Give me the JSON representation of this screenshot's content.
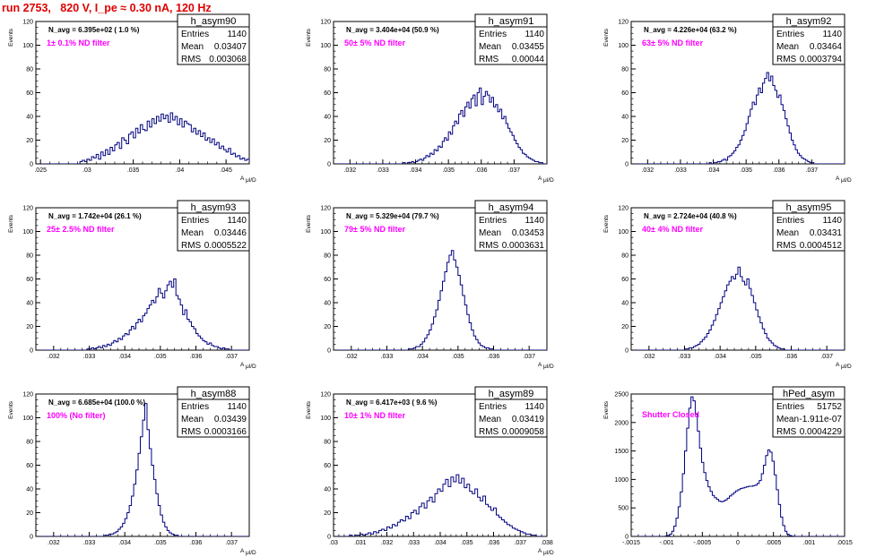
{
  "page_title": "run 2753,   820 V, I_pe ≈ 0.30 nA, 120 Hz",
  "stat_labels": {
    "entries": "Entries",
    "mean": "Mean",
    "rms": "RMS"
  },
  "colors": {
    "title": "#e00000",
    "filter_label": "#ff00ff",
    "histogram_line": "#000080"
  },
  "chart_data": [
    {
      "type": "bar",
      "name": "h_asym90",
      "x_label": "A",
      "x_sub": "μl/D",
      "y_label": "Events",
      "xlim": [
        0.0245,
        0.0475
      ],
      "ylim": [
        0,
        120
      ],
      "x_ticks": [
        0.025,
        0.03,
        0.035,
        0.04,
        0.045
      ],
      "y_ticks": [
        0,
        20,
        40,
        60,
        80,
        100,
        120
      ],
      "n_avg_text": "N_avg = 6.395e+02 ( 1.0 %)",
      "filter_text": "1± 0.1% ND filter",
      "stats": {
        "entries": "1140",
        "mean": "0.03407",
        "rms": "0.003068"
      },
      "bin_start": 0.0245,
      "bin_width": 0.00025,
      "counts": [
        0,
        0,
        0,
        0,
        0,
        0,
        0,
        0,
        0,
        0,
        0,
        0,
        0,
        0,
        0,
        0,
        0,
        0,
        0,
        2,
        3,
        2,
        4,
        3,
        6,
        5,
        8,
        4,
        10,
        7,
        12,
        8,
        14,
        11,
        16,
        18,
        13,
        22,
        20,
        17,
        25,
        27,
        22,
        30,
        26,
        33,
        29,
        28,
        36,
        31,
        38,
        34,
        40,
        36,
        42,
        38,
        41,
        35,
        43,
        37,
        40,
        33,
        38,
        31,
        36,
        34,
        33,
        27,
        30,
        25,
        28,
        23,
        26,
        20,
        22,
        18,
        21,
        16,
        18,
        13,
        15,
        12,
        10,
        13,
        8,
        9,
        6,
        7,
        4,
        5,
        3,
        4,
        2,
        2,
        1,
        2,
        1,
        0
      ]
    },
    {
      "type": "bar",
      "name": "h_asym91",
      "x_label": "A",
      "x_sub": "μl/D",
      "y_label": "Events",
      "xlim": [
        0.0315,
        0.038
      ],
      "ylim": [
        0,
        120
      ],
      "x_ticks": [
        0.032,
        0.033,
        0.034,
        0.035,
        0.036,
        0.037
      ],
      "y_ticks": [
        0,
        20,
        40,
        60,
        80,
        100,
        120
      ],
      "n_avg_text": "N_avg = 3.404e+04 (50.9 %)",
      "filter_text": "50± 5% ND filter",
      "stats": {
        "entries": "1140",
        "mean": "0.03455",
        "rms": "0.00044"
      },
      "bin_start": 0.0315,
      "bin_width": 6.25e-05,
      "counts": [
        0,
        0,
        0,
        0,
        0,
        0,
        0,
        0,
        0,
        0,
        0,
        0,
        0,
        0,
        0,
        0,
        0,
        0,
        0,
        0,
        0,
        0,
        0,
        0,
        0,
        0,
        0,
        0,
        0,
        0,
        0,
        0,
        0,
        0,
        1,
        0,
        1,
        1,
        2,
        1,
        2,
        3,
        4,
        3,
        5,
        7,
        6,
        9,
        8,
        12,
        11,
        15,
        14,
        19,
        22,
        20,
        27,
        25,
        32,
        36,
        34,
        42,
        45,
        40,
        48,
        52,
        47,
        55,
        58,
        49,
        60,
        64,
        50,
        57,
        61,
        58,
        52,
        56,
        48,
        50,
        44,
        46,
        38,
        40,
        34,
        30,
        27,
        24,
        20,
        17,
        14,
        12,
        9,
        8,
        6,
        5,
        4,
        3,
        2,
        2,
        1,
        1,
        0,
        0
      ]
    },
    {
      "type": "bar",
      "name": "h_asym92",
      "x_label": "A",
      "x_sub": "μl/D",
      "y_label": "Events",
      "xlim": [
        0.0315,
        0.038
      ],
      "ylim": [
        0,
        120
      ],
      "x_ticks": [
        0.032,
        0.033,
        0.034,
        0.035,
        0.036,
        0.037
      ],
      "y_ticks": [
        0,
        20,
        40,
        60,
        80,
        100,
        120
      ],
      "n_avg_text": "N_avg = 4.226e+04 (63.2 %)",
      "filter_text": "63± 5% ND filter",
      "stats": {
        "entries": "1140",
        "mean": "0.03464",
        "rms": "0.0003794"
      },
      "bin_start": 0.0315,
      "bin_width": 6.25e-05,
      "counts": [
        0,
        0,
        0,
        0,
        0,
        0,
        0,
        0,
        0,
        0,
        0,
        0,
        0,
        0,
        0,
        0,
        0,
        0,
        0,
        0,
        0,
        0,
        0,
        0,
        0,
        0,
        0,
        0,
        0,
        0,
        0,
        0,
        0,
        0,
        0,
        0,
        0,
        0,
        1,
        0,
        1,
        1,
        2,
        2,
        3,
        4,
        3,
        6,
        7,
        9,
        11,
        14,
        16,
        20,
        24,
        28,
        34,
        40,
        46,
        52,
        50,
        58,
        64,
        60,
        68,
        72,
        77,
        70,
        74,
        66,
        62,
        56,
        58,
        50,
        45,
        38,
        32,
        26,
        20,
        16,
        12,
        9,
        7,
        5,
        4,
        3,
        2,
        1,
        1,
        0,
        0,
        0,
        0,
        0,
        0,
        0,
        0,
        0,
        0,
        0,
        0,
        0,
        0,
        0
      ]
    },
    {
      "type": "bar",
      "name": "h_asym93",
      "x_label": "A",
      "x_sub": "μl/D",
      "y_label": "Events",
      "xlim": [
        0.0315,
        0.0375
      ],
      "ylim": [
        0,
        120
      ],
      "x_ticks": [
        0.032,
        0.033,
        0.034,
        0.035,
        0.036,
        0.037
      ],
      "y_ticks": [
        0,
        20,
        40,
        60,
        80,
        100,
        120
      ],
      "n_avg_text": "N_avg = 1.742e+04 (26.1 %)",
      "filter_text": "25± 2.5% ND filter",
      "stats": {
        "entries": "1140",
        "mean": "0.03446",
        "rms": "0.0005522"
      },
      "bin_start": 0.0315,
      "bin_width": 6.25e-05,
      "counts": [
        0,
        0,
        0,
        0,
        0,
        0,
        0,
        0,
        0,
        0,
        0,
        0,
        0,
        0,
        0,
        0,
        0,
        0,
        0,
        0,
        0,
        0,
        0,
        1,
        1,
        2,
        1,
        2,
        3,
        2,
        4,
        3,
        5,
        4,
        6,
        8,
        7,
        10,
        9,
        12,
        14,
        13,
        17,
        20,
        18,
        23,
        26,
        24,
        29,
        31,
        35,
        38,
        42,
        40,
        45,
        52,
        48,
        44,
        50,
        55,
        58,
        53,
        60,
        46,
        43,
        38,
        30,
        34,
        26,
        24,
        20,
        18,
        14,
        12,
        10,
        8,
        7,
        5,
        6,
        4,
        3,
        3,
        2,
        1,
        2,
        1,
        1,
        0,
        0,
        0,
        0,
        0,
        0,
        0,
        0,
        0
      ]
    },
    {
      "type": "bar",
      "name": "h_asym94",
      "x_label": "A",
      "x_sub": "μl/D",
      "y_label": "Events",
      "xlim": [
        0.0315,
        0.0375
      ],
      "ylim": [
        0,
        120
      ],
      "x_ticks": [
        0.032,
        0.033,
        0.034,
        0.035,
        0.036,
        0.037
      ],
      "y_ticks": [
        0,
        20,
        40,
        60,
        80,
        100,
        120
      ],
      "n_avg_text": "N_avg = 5.329e+04 (79.7 %)",
      "filter_text": "79± 5% ND filter",
      "stats": {
        "entries": "1140",
        "mean": "0.03453",
        "rms": "0.0003631"
      },
      "bin_start": 0.0315,
      "bin_width": 6.25e-05,
      "counts": [
        0,
        0,
        0,
        0,
        0,
        0,
        0,
        0,
        0,
        0,
        0,
        0,
        0,
        0,
        0,
        0,
        0,
        0,
        0,
        0,
        0,
        0,
        0,
        0,
        0,
        0,
        0,
        0,
        0,
        0,
        0,
        0,
        0,
        0,
        1,
        1,
        2,
        3,
        3,
        5,
        7,
        10,
        13,
        17,
        22,
        28,
        34,
        42,
        50,
        58,
        66,
        74,
        80,
        84,
        76,
        70,
        63,
        55,
        46,
        38,
        30,
        23,
        17,
        12,
        9,
        6,
        4,
        3,
        2,
        2,
        1,
        1,
        0,
        0,
        0,
        0,
        0,
        0,
        0,
        0,
        0,
        0,
        0,
        0,
        0,
        0,
        0,
        0,
        0,
        0,
        0,
        0,
        0,
        0,
        0,
        0
      ]
    },
    {
      "type": "bar",
      "name": "h_asym95",
      "x_label": "A",
      "x_sub": "μl/D",
      "y_label": "Events",
      "xlim": [
        0.0315,
        0.0375
      ],
      "ylim": [
        0,
        120
      ],
      "x_ticks": [
        0.032,
        0.033,
        0.034,
        0.035,
        0.036,
        0.037
      ],
      "y_ticks": [
        0,
        20,
        40,
        60,
        80,
        100,
        120
      ],
      "n_avg_text": "N_avg = 2.724e+04 (40.8 %)",
      "filter_text": "40± 4% ND filter",
      "stats": {
        "entries": "1140",
        "mean": "0.03431",
        "rms": "0.0004512"
      },
      "bin_start": 0.0315,
      "bin_width": 6.25e-05,
      "counts": [
        0,
        0,
        0,
        0,
        0,
        0,
        0,
        0,
        0,
        0,
        0,
        0,
        0,
        0,
        0,
        0,
        0,
        0,
        0,
        0,
        0,
        0,
        0,
        0,
        1,
        1,
        2,
        2,
        3,
        4,
        5,
        7,
        9,
        11,
        14,
        17,
        21,
        25,
        30,
        35,
        40,
        45,
        50,
        55,
        58,
        62,
        60,
        64,
        70,
        62,
        58,
        55,
        60,
        52,
        46,
        40,
        34,
        28,
        23,
        18,
        14,
        10,
        8,
        6,
        4,
        3,
        2,
        1,
        1,
        0,
        0,
        0,
        0,
        0,
        0,
        0,
        0,
        0,
        0,
        0,
        0,
        0,
        0,
        0,
        0,
        0,
        0,
        0,
        0,
        0,
        0,
        0,
        0,
        0,
        0,
        0
      ]
    },
    {
      "type": "bar",
      "name": "h_asym88",
      "x_label": "A",
      "x_sub": "μl/D",
      "y_label": "Events",
      "xlim": [
        0.0315,
        0.0375
      ],
      "ylim": [
        0,
        120
      ],
      "x_ticks": [
        0.032,
        0.033,
        0.034,
        0.035,
        0.036,
        0.037
      ],
      "y_ticks": [
        0,
        20,
        40,
        60,
        80,
        100,
        120
      ],
      "n_avg_text": "N_avg = 6.685e+04 (100.0 %)",
      "filter_text": "100% (No filter)",
      "stats": {
        "entries": "1140",
        "mean": "0.03439",
        "rms": "0.0003166"
      },
      "bin_start": 0.0315,
      "bin_width": 6.25e-05,
      "counts": [
        0,
        0,
        0,
        0,
        0,
        0,
        0,
        0,
        0,
        0,
        0,
        0,
        0,
        0,
        0,
        0,
        0,
        0,
        0,
        0,
        0,
        0,
        0,
        0,
        0,
        0,
        0,
        0,
        0,
        0,
        0,
        1,
        1,
        2,
        2,
        3,
        4,
        6,
        8,
        11,
        15,
        20,
        26,
        34,
        44,
        56,
        70,
        84,
        98,
        112,
        90,
        74,
        60,
        48,
        36,
        26,
        18,
        12,
        8,
        5,
        3,
        2,
        1,
        1,
        0,
        0,
        0,
        0,
        0,
        0,
        0,
        0,
        0,
        0,
        0,
        0,
        0,
        0,
        0,
        0,
        0,
        0,
        0,
        0,
        0,
        0,
        0,
        0,
        0,
        0,
        0,
        0,
        0,
        0,
        0,
        0
      ]
    },
    {
      "type": "bar",
      "name": "h_asym89",
      "x_label": "A",
      "x_sub": "μl/D",
      "y_label": "Events",
      "xlim": [
        0.03,
        0.038
      ],
      "ylim": [
        0,
        120
      ],
      "x_ticks": [
        0.03,
        0.031,
        0.032,
        0.033,
        0.034,
        0.035,
        0.036,
        0.037,
        0.038
      ],
      "y_ticks": [
        0,
        20,
        40,
        60,
        80,
        100,
        120
      ],
      "n_avg_text": "N_avg = 6.417e+03 ( 9.6 %)",
      "filter_text": "10± 1% ND filter",
      "stats": {
        "entries": "1140",
        "mean": "0.03419",
        "rms": "0.0009058"
      },
      "bin_start": 0.03,
      "bin_width": 0.0001,
      "counts": [
        0,
        0,
        0,
        0,
        0,
        0,
        1,
        0,
        1,
        1,
        2,
        1,
        2,
        3,
        2,
        4,
        3,
        5,
        6,
        5,
        8,
        7,
        10,
        9,
        12,
        14,
        13,
        17,
        15,
        20,
        22,
        19,
        25,
        28,
        24,
        30,
        33,
        29,
        36,
        40,
        38,
        44,
        48,
        42,
        50,
        46,
        52,
        45,
        49,
        41,
        44,
        38,
        36,
        40,
        33,
        30,
        34,
        27,
        25,
        22,
        24,
        18,
        16,
        14,
        12,
        10,
        9,
        7,
        6,
        5,
        4,
        3,
        2,
        2,
        1,
        1,
        0,
        0,
        0,
        0
      ]
    },
    {
      "type": "bar",
      "name": "hPed_asym",
      "x_label": "",
      "x_sub": "",
      "y_label": "Events",
      "xlim": [
        -0.0015,
        0.0015
      ],
      "ylim": [
        0,
        2500
      ],
      "x_ticks": [
        -0.0015,
        -0.001,
        -0.0005,
        0,
        0.0005,
        0.001,
        0.0015
      ],
      "y_ticks": [
        0,
        500,
        1000,
        1500,
        2000,
        2500
      ],
      "n_avg_text": "",
      "filter_text": "Shutter Closed",
      "stats": {
        "entries": "51752",
        "mean": "-1.911e-07",
        "rms": "0.0004229"
      },
      "bin_start": -0.0015,
      "bin_width": 3e-05,
      "counts": [
        0,
        0,
        0,
        0,
        0,
        0,
        0,
        0,
        0,
        0,
        0,
        0,
        0,
        0,
        0,
        0,
        5,
        15,
        40,
        90,
        180,
        320,
        520,
        780,
        1100,
        1500,
        1900,
        2250,
        2450,
        2380,
        2150,
        1850,
        1550,
        1300,
        1120,
        980,
        870,
        790,
        720,
        680,
        650,
        620,
        610,
        620,
        640,
        670,
        710,
        740,
        770,
        800,
        820,
        840,
        850,
        860,
        870,
        880,
        880,
        890,
        900,
        930,
        980,
        1100,
        1250,
        1420,
        1520,
        1480,
        1320,
        1080,
        820,
        560,
        340,
        190,
        90,
        40,
        15,
        5,
        0,
        0,
        0,
        0,
        0,
        0,
        0,
        0,
        0,
        0,
        0,
        0,
        0,
        0,
        0,
        0,
        0,
        0,
        0,
        0,
        0,
        0,
        0,
        0
      ]
    }
  ]
}
